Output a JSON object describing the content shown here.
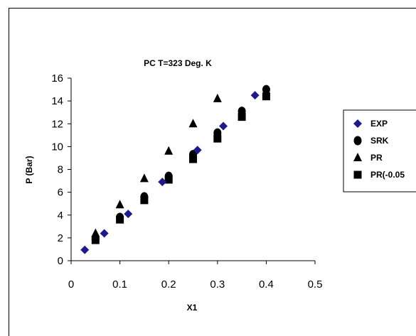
{
  "chart_data": {
    "type": "scatter",
    "title": "PC   T=323  Deg. K",
    "xlabel": "X1",
    "ylabel": "P   (Bar)",
    "xlim": [
      0,
      0.5
    ],
    "ylim": [
      0,
      16
    ],
    "xticks": [
      0,
      0.1,
      0.2,
      0.3,
      0.4,
      0.5
    ],
    "yticks": [
      0,
      2,
      4,
      6,
      8,
      10,
      12,
      14,
      16
    ],
    "xtick_labels": [
      "0",
      "0.1",
      "0.2",
      "0.3",
      "0.4",
      "0.5"
    ],
    "ytick_labels": [
      "0",
      "2",
      "4",
      "6",
      "8",
      "10",
      "12",
      "14",
      "16"
    ],
    "grid": false,
    "legend_position": "right",
    "series": [
      {
        "name": "EXP",
        "marker": "diamond",
        "color": "#1f1a8c",
        "x": [
          0.028,
          0.068,
          0.117,
          0.187,
          0.259,
          0.312,
          0.377
        ],
        "y": [
          0.95,
          2.4,
          4.1,
          6.9,
          9.7,
          11.8,
          14.5
        ]
      },
      {
        "name": "SRK",
        "marker": "circle",
        "color": "#000000",
        "x": [
          0.05,
          0.1,
          0.15,
          0.2,
          0.25,
          0.3,
          0.35,
          0.4
        ],
        "y": [
          1.9,
          3.8,
          5.6,
          7.4,
          9.3,
          11.2,
          13.1,
          15.0
        ]
      },
      {
        "name": "PR",
        "marker": "triangle",
        "color": "#000000",
        "x": [
          0.05,
          0.1,
          0.15,
          0.2,
          0.25,
          0.3
        ],
        "y": [
          2.4,
          4.9,
          7.2,
          9.6,
          12.0,
          14.2
        ]
      },
      {
        "name": "PR(-0.05",
        "marker": "square",
        "color": "#000000",
        "x": [
          0.05,
          0.1,
          0.15,
          0.2,
          0.25,
          0.3,
          0.35,
          0.4
        ],
        "y": [
          1.8,
          3.6,
          5.3,
          7.1,
          8.9,
          10.7,
          12.6,
          14.4
        ]
      }
    ]
  }
}
